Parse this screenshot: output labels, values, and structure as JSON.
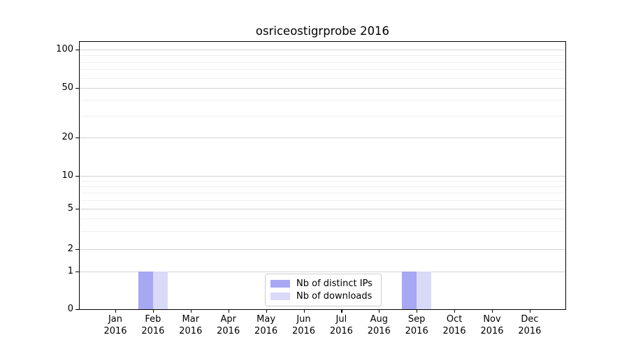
{
  "chart_data": {
    "type": "bar",
    "title": "osriceostigrprobe 2016",
    "categories": [
      "Jan",
      "Feb",
      "Mar",
      "Apr",
      "May",
      "Jun",
      "Jul",
      "Aug",
      "Sep",
      "Oct",
      "Nov",
      "Dec"
    ],
    "x_tick_second_line": "2016",
    "series": [
      {
        "name": "Nb of distinct IPs",
        "color": "#a7a7f3",
        "values": [
          0,
          1,
          0,
          0,
          0,
          0,
          0,
          0,
          1,
          0,
          0,
          0
        ]
      },
      {
        "name": "Nb of downloads",
        "color": "#d9d9f8",
        "values": [
          0,
          1,
          0,
          0,
          0,
          0,
          0,
          0,
          1,
          0,
          0,
          0
        ]
      }
    ],
    "y_axis": {
      "scale": "log-like with linear zero segment",
      "ticks": [
        0,
        1,
        2,
        5,
        10,
        20,
        50,
        100
      ],
      "minor_gridlines": [
        3,
        4,
        6,
        7,
        8,
        9,
        30,
        40,
        60,
        70,
        80,
        90
      ],
      "range": [
        0,
        100
      ]
    },
    "xlabel": "",
    "ylabel": "",
    "grid": {
      "orientation": "horizontal",
      "major_color": "#d3d3d3",
      "minor_color": "#efefef"
    },
    "legend": {
      "position": "bottom-center-inside",
      "border_color": "#cccccc"
    }
  }
}
